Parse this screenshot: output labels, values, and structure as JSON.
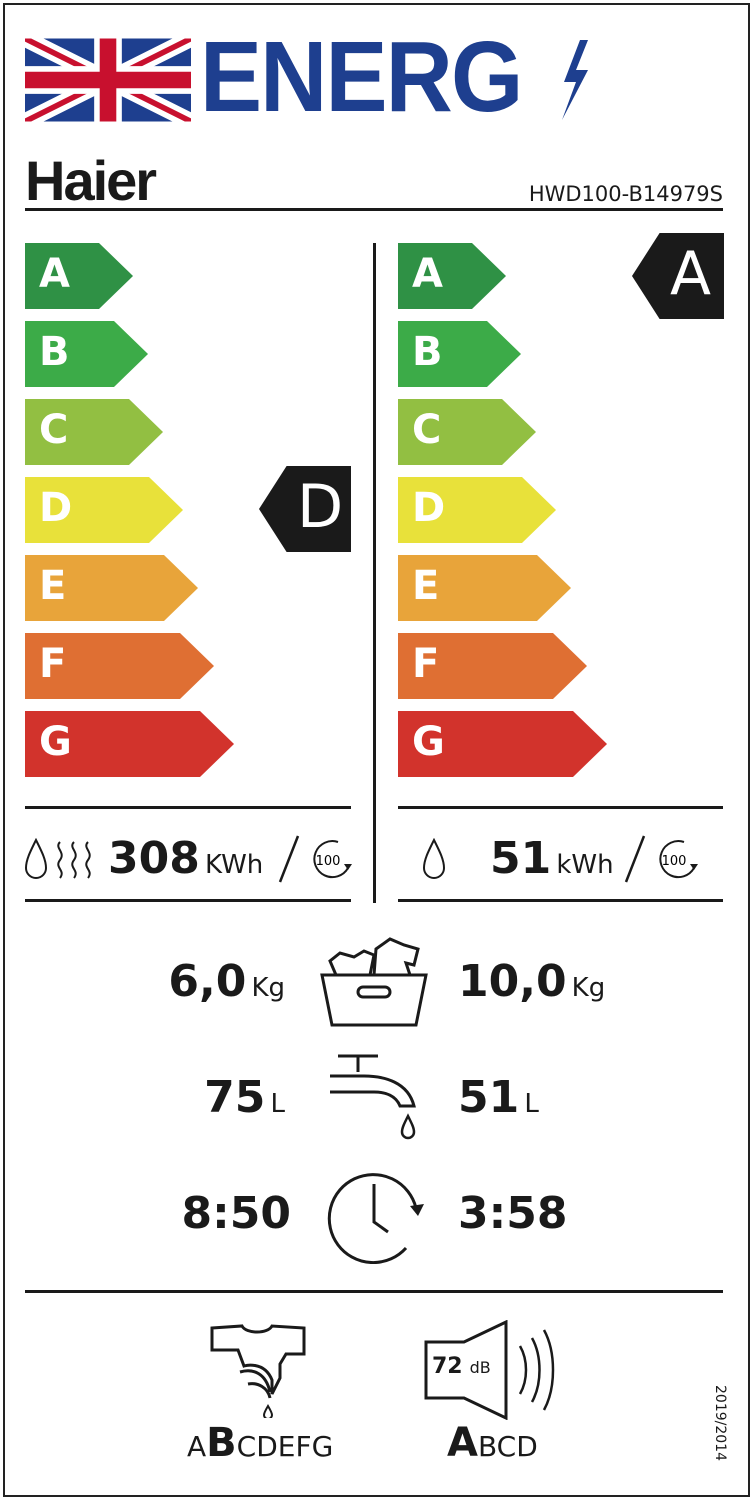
{
  "header": {
    "title": "ENERG",
    "brand": "Haier",
    "model": "HWD100-B14979S",
    "flag": "uk-flag-icon",
    "bolt": "lightning-bolt-icon"
  },
  "scale": [
    "A",
    "B",
    "C",
    "D",
    "E",
    "F",
    "G"
  ],
  "colors": {
    "A": "#2f9145",
    "B": "#3cab48",
    "C": "#92bf42",
    "D": "#e8e13a",
    "E": "#e8a43a",
    "F": "#df6f33",
    "G": "#d2332c",
    "marker": "#1a1a1a"
  },
  "washdry": {
    "class": "D",
    "energy": "308",
    "unit": "KWh",
    "per": "100"
  },
  "wash": {
    "class": "A",
    "energy": "51",
    "unit": "kWh",
    "per": "100"
  },
  "capacity": {
    "washdry": "6,0",
    "wash": "10,0",
    "unit": "Kg"
  },
  "water": {
    "washdry": "75",
    "wash": "51",
    "unit": "L"
  },
  "duration": {
    "washdry": "8:50",
    "wash": "3:58"
  },
  "spin": {
    "scale_before": "A",
    "class": "B",
    "scale_after": "CDEFG"
  },
  "noise": {
    "value": "72",
    "unit": "dB",
    "class": "A",
    "scale_after": "BCD"
  },
  "regulation": "2019/2014"
}
